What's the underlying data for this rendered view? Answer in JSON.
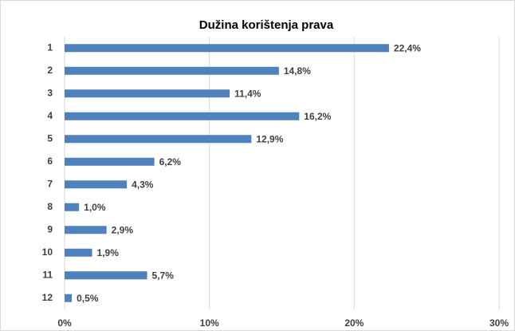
{
  "chart_data": {
    "type": "bar",
    "orientation": "horizontal",
    "title": "Dužina korištenja prava",
    "categories": [
      "1",
      "2",
      "3",
      "4",
      "5",
      "6",
      "7",
      "8",
      "9",
      "10",
      "11",
      "12"
    ],
    "values": [
      22.4,
      14.8,
      11.4,
      16.2,
      12.9,
      6.2,
      4.3,
      1.0,
      2.9,
      1.9,
      5.7,
      0.5
    ],
    "value_labels": [
      "22,4%",
      "14,8%",
      "11,4%",
      "16,2%",
      "12,9%",
      "6,2%",
      "4,3%",
      "1,0%",
      "2,9%",
      "1,9%",
      "5,7%",
      "0,5%"
    ],
    "color": "#4f81bd",
    "xlim": [
      0,
      30
    ],
    "xticks": [
      {
        "value": 0,
        "label": "0%"
      },
      {
        "value": 10,
        "label": "10%"
      },
      {
        "value": 20,
        "label": "20%"
      },
      {
        "value": 30,
        "label": "30%"
      }
    ],
    "grid": true
  }
}
